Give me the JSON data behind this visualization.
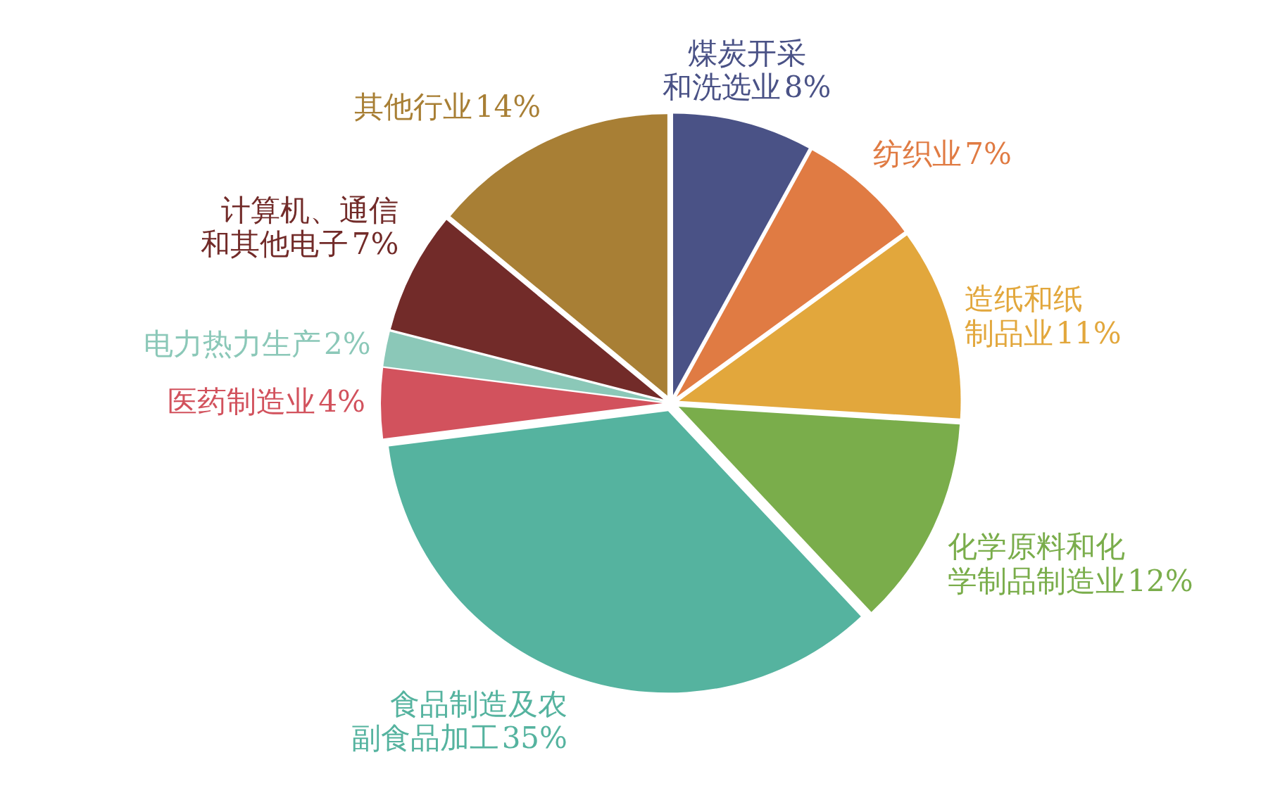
{
  "chart_data": {
    "type": "pie",
    "categories": [
      "煤炭开采和洗选业",
      "纺织业",
      "造纸和纸制品业",
      "化学原料和化学制品制造业",
      "食品制造及农副食品加工",
      "医药制造业",
      "电力热力生产",
      "计算机、通信和其他电子",
      "其他行业"
    ],
    "values": [
      8,
      7,
      11,
      12,
      35,
      4,
      2,
      7,
      14
    ],
    "colors": [
      "#4a5286",
      "#e07b43",
      "#e2a73c",
      "#7aad4b",
      "#55b39f",
      "#d2525d",
      "#8bc8b8",
      "#722b29",
      "#a87f35"
    ],
    "value_labels": [
      "8%",
      "7%",
      "11%",
      "12%",
      "35%",
      "4%",
      "2%",
      "7%",
      "14%"
    ],
    "legend": false
  }
}
